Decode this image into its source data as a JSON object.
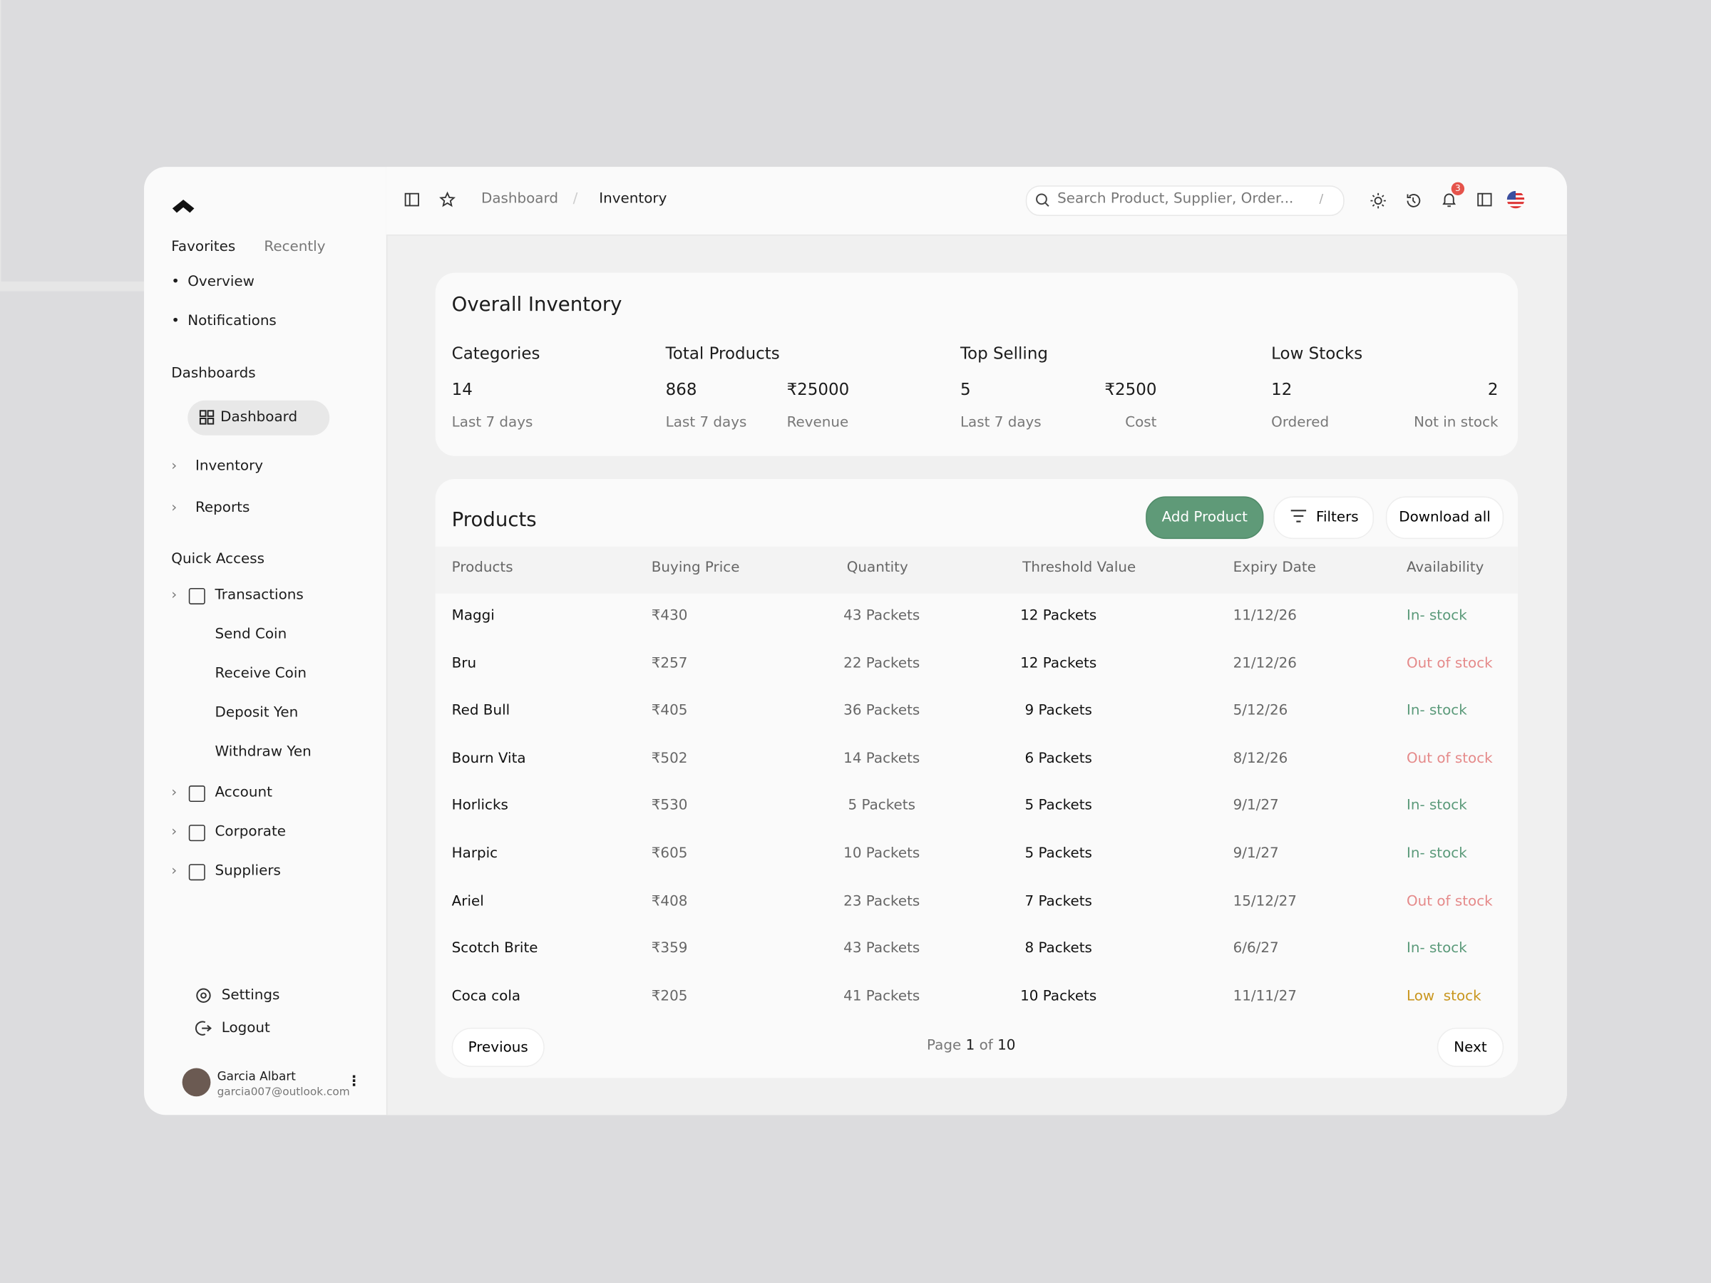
{
  "sidebar": {
    "tabs": [
      "Favorites",
      "Recently"
    ],
    "favorites": [
      "Overview",
      "Notifications"
    ],
    "dashboards_heading": "Dashboards",
    "dashboard": "Dashboard",
    "nav": [
      "Inventory",
      "Reports"
    ],
    "quick_access_heading": "Quick Access",
    "quick_access": [
      "Transactions",
      "Send Coin",
      "Receive Coin",
      "Deposit Yen",
      "Withdraw Yen",
      "Account",
      "Corporate",
      "Suppliers"
    ],
    "footer": [
      "Settings",
      "Logout"
    ],
    "user": {
      "name": "Garcia Albart",
      "email": "garcia007@outlook.com"
    }
  },
  "topbar": {
    "breadcrumb": [
      "Dashboard",
      "Inventory"
    ],
    "breadcrumb_separator": "/",
    "search_placeholder": "Search Product, Supplier, Order...",
    "search_shortcut": "/",
    "notification_count": "3"
  },
  "overall": {
    "title": "Overall Inventory",
    "stats": [
      {
        "label": "Categories",
        "items": [
          {
            "value": "14",
            "caption": "Last 7 days"
          }
        ]
      },
      {
        "label": "Total Products",
        "items": [
          {
            "value": "868",
            "caption": "Last 7 days"
          },
          {
            "value": "₹25000",
            "caption": "Revenue"
          }
        ]
      },
      {
        "label": "Top Selling",
        "items": [
          {
            "value": "5",
            "caption": "Last 7 days"
          },
          {
            "value": "₹2500",
            "caption": "Cost"
          }
        ]
      },
      {
        "label": "Low Stocks",
        "items": [
          {
            "value": "12",
            "caption": "Ordered"
          },
          {
            "value": "2",
            "caption": "Not in stock"
          }
        ]
      }
    ]
  },
  "products": {
    "title": "Products",
    "buttons": [
      "Add Product",
      "Filters",
      "Download all"
    ],
    "headers": [
      "Products",
      "Buying Price",
      "Quantity",
      "Threshold Value",
      "Expiry Date",
      "Availability"
    ],
    "rows": [
      {
        "cells": [
          "Maggi",
          "₹430",
          "43 Packets",
          "12 Packets",
          "11/12/26",
          "In- stock"
        ],
        "availability_color": "#5b9a7a"
      },
      {
        "cells": [
          "Bru",
          "₹257",
          "22 Packets",
          "12 Packets",
          "21/12/26",
          "Out of stock"
        ],
        "availability_color": "#e58a8a"
      },
      {
        "cells": [
          "Red Bull",
          "₹405",
          "36 Packets",
          "9 Packets",
          "5/12/26",
          "In- stock"
        ],
        "availability_color": "#5b9a7a"
      },
      {
        "cells": [
          "Bourn Vita",
          "₹502",
          "14 Packets",
          "6 Packets",
          "8/12/26",
          "Out of stock"
        ],
        "availability_color": "#e58a8a"
      },
      {
        "cells": [
          "Horlicks",
          "₹530",
          "5 Packets",
          "5 Packets",
          "9/1/27",
          "In- stock"
        ],
        "availability_color": "#5b9a7a"
      },
      {
        "cells": [
          "Harpic",
          "₹605",
          "10 Packets",
          "5 Packets",
          "9/1/27",
          "In- stock"
        ],
        "availability_color": "#5b9a7a"
      },
      {
        "cells": [
          "Ariel",
          "₹408",
          "23 Packets",
          "7 Packets",
          "15/12/27",
          "Out of stock"
        ],
        "availability_color": "#e58a8a"
      },
      {
        "cells": [
          "Scotch Brite",
          "₹359",
          "43 Packets",
          "8 Packets",
          "6/6/27",
          "In- stock"
        ],
        "availability_color": "#5b9a7a"
      },
      {
        "cells": [
          "Coca cola",
          "₹205",
          "41 Packets",
          "10 Packets",
          "11/11/27",
          "Low  stock"
        ],
        "availability_color": "#c9961f"
      }
    ],
    "pagination": {
      "previous": "Previous",
      "page_word": "Page",
      "current": "1",
      "of_word": "of",
      "total": "10",
      "next": "Next"
    }
  }
}
